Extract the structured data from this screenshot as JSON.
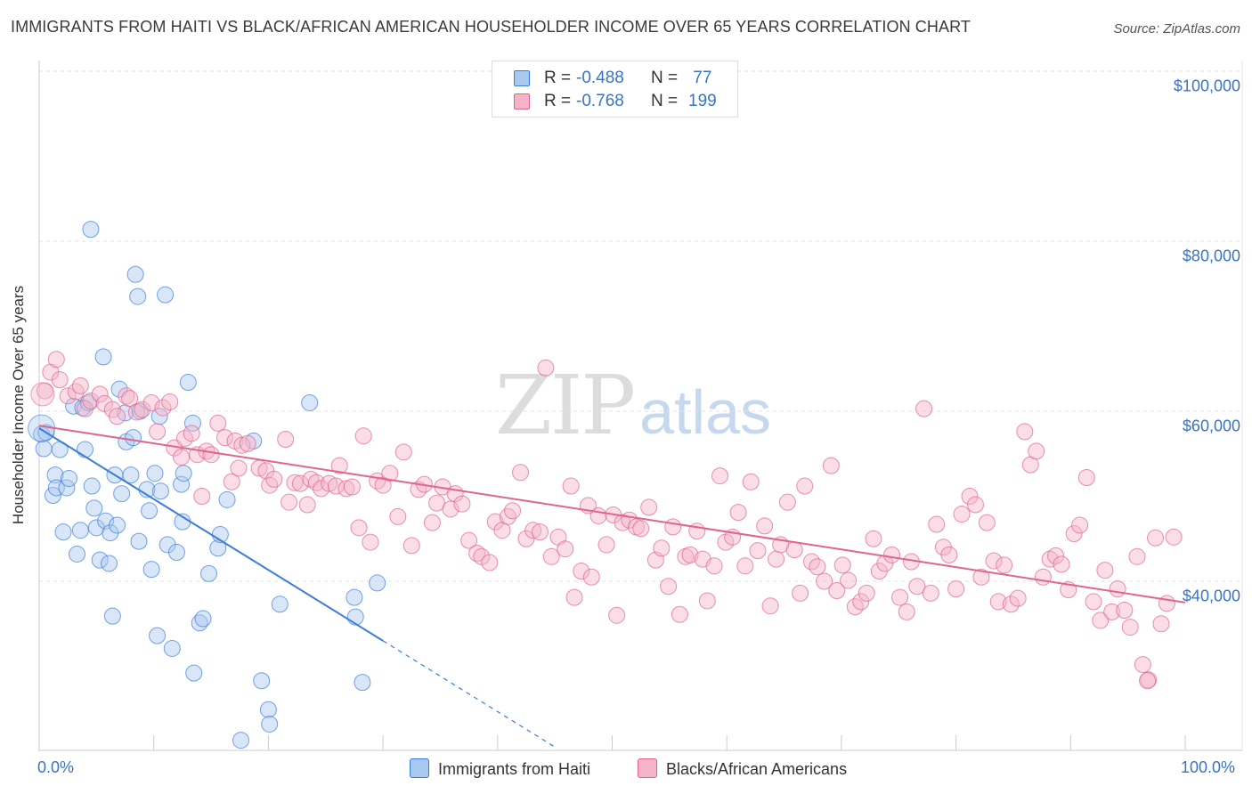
{
  "title": "IMMIGRANTS FROM HAITI VS BLACK/AFRICAN AMERICAN HOUSEHOLDER INCOME OVER 65 YEARS CORRELATION CHART",
  "source": "Source: ZipAtlas.com",
  "watermark": {
    "zip": "ZIP",
    "atlas": "atlas"
  },
  "legend": {
    "series1": {
      "r_label": "R = ",
      "r_value": "-0.488",
      "n_label": "N = ",
      "n_value": " 77"
    },
    "series2": {
      "r_label": "R = ",
      "r_value": "-0.768",
      "n_label": "N = ",
      "n_value": "199"
    }
  },
  "colors": {
    "blue": "#3b7dd8",
    "blue_fill": "#a9c8f0",
    "pink": "#e0648f",
    "pink_fill": "#f5b3c8",
    "tick_text": "#3a73c4",
    "grid": "#e2e2e2"
  },
  "chart_data": {
    "type": "scatter",
    "title": "IMMIGRANTS FROM HAITI VS BLACK/AFRICAN AMERICAN HOUSEHOLDER INCOME OVER 65 YEARS CORRELATION CHART",
    "xlabel": "",
    "ylabel": "Householder Income Over 65 years",
    "xlim": [
      0,
      100
    ],
    "ylim": [
      20000,
      102000
    ],
    "x_tick_labels": [
      "0.0%",
      "100.0%"
    ],
    "y_ticks": [
      {
        "value": 40000,
        "label": "$40,000"
      },
      {
        "value": 60000,
        "label": "$60,000"
      },
      {
        "value": 80000,
        "label": "$80,000"
      },
      {
        "value": 100000,
        "label": "$100,000"
      }
    ],
    "grid": true,
    "series": [
      {
        "name": "Immigrants from Haiti",
        "color": "#3b7dd8",
        "r": -0.488,
        "n": 77,
        "trend": {
          "x0": 0,
          "y0": 58000,
          "x1": 30,
          "y1": 33000,
          "dashed_to_x": 45,
          "dashed_to_y": 20500
        },
        "points": [
          [
            0.2,
            57.3
          ],
          [
            0.4,
            55.6
          ],
          [
            0.6,
            57.5
          ],
          [
            1.2,
            50.1
          ],
          [
            1.4,
            52.5
          ],
          [
            1.5,
            51.0
          ],
          [
            1.8,
            55.5
          ],
          [
            2.1,
            45.8
          ],
          [
            2.4,
            51.0
          ],
          [
            2.6,
            52.1
          ],
          [
            3.0,
            60.6
          ],
          [
            3.3,
            43.2
          ],
          [
            3.6,
            46.0
          ],
          [
            3.8,
            60.4
          ],
          [
            4.0,
            55.5
          ],
          [
            4.3,
            61.0
          ],
          [
            4.5,
            81.4
          ],
          [
            4.6,
            51.2
          ],
          [
            4.8,
            48.6
          ],
          [
            5.0,
            46.3
          ],
          [
            5.3,
            42.5
          ],
          [
            5.6,
            66.4
          ],
          [
            5.8,
            47.1
          ],
          [
            6.1,
            42.1
          ],
          [
            6.2,
            45.7
          ],
          [
            6.4,
            35.9
          ],
          [
            6.6,
            52.5
          ],
          [
            6.8,
            46.6
          ],
          [
            7.0,
            62.6
          ],
          [
            7.2,
            50.3
          ],
          [
            7.5,
            59.8
          ],
          [
            7.6,
            56.4
          ],
          [
            8.0,
            52.5
          ],
          [
            8.2,
            56.9
          ],
          [
            8.4,
            76.1
          ],
          [
            8.6,
            73.5
          ],
          [
            8.7,
            44.7
          ],
          [
            8.8,
            60.0
          ],
          [
            9.4,
            50.8
          ],
          [
            9.6,
            48.3
          ],
          [
            9.8,
            41.4
          ],
          [
            10.1,
            52.7
          ],
          [
            10.3,
            33.6
          ],
          [
            10.5,
            59.4
          ],
          [
            10.6,
            50.6
          ],
          [
            11.0,
            73.7
          ],
          [
            11.2,
            44.3
          ],
          [
            11.6,
            32.1
          ],
          [
            12.0,
            43.4
          ],
          [
            12.4,
            51.4
          ],
          [
            12.5,
            47.0
          ],
          [
            12.6,
            52.7
          ],
          [
            13.0,
            63.4
          ],
          [
            13.4,
            58.6
          ],
          [
            13.5,
            29.2
          ],
          [
            14.0,
            35.1
          ],
          [
            14.3,
            35.6
          ],
          [
            14.8,
            40.9
          ],
          [
            15.6,
            43.9
          ],
          [
            15.8,
            45.5
          ],
          [
            16.4,
            49.6
          ],
          [
            17.6,
            21.3
          ],
          [
            18.7,
            56.5
          ],
          [
            19.4,
            28.3
          ],
          [
            20.0,
            24.9
          ],
          [
            20.1,
            23.2
          ],
          [
            21.0,
            37.3
          ],
          [
            23.6,
            61.0
          ],
          [
            27.5,
            38.1
          ],
          [
            27.6,
            35.8
          ],
          [
            28.2,
            28.1
          ],
          [
            29.5,
            39.8
          ]
        ]
      },
      {
        "name": "Blacks/African Americans",
        "color": "#e0648f",
        "r": -0.768,
        "n": 199,
        "trend": {
          "x0": 0,
          "y0": 58300,
          "x1": 100,
          "y1": 37500
        },
        "points": [
          [
            0.5,
            62.4
          ],
          [
            1.0,
            64.6
          ],
          [
            1.5,
            66.1
          ],
          [
            1.8,
            63.7
          ],
          [
            2.5,
            61.8
          ],
          [
            3.2,
            62.3
          ],
          [
            3.6,
            63.0
          ],
          [
            4.0,
            60.3
          ],
          [
            4.5,
            61.2
          ],
          [
            5.3,
            62.0
          ],
          [
            5.7,
            60.9
          ],
          [
            6.4,
            60.2
          ],
          [
            6.8,
            59.4
          ],
          [
            7.6,
            61.8
          ],
          [
            7.9,
            61.5
          ],
          [
            8.5,
            59.9
          ],
          [
            9.0,
            60.2
          ],
          [
            9.8,
            61.0
          ],
          [
            10.3,
            57.6
          ],
          [
            10.8,
            60.4
          ],
          [
            11.4,
            61.1
          ],
          [
            11.8,
            55.7
          ],
          [
            12.4,
            54.6
          ],
          [
            12.7,
            56.8
          ],
          [
            13.3,
            57.4
          ],
          [
            13.8,
            54.9
          ],
          [
            14.2,
            50.0
          ],
          [
            14.6,
            55.3
          ],
          [
            15.0,
            54.9
          ],
          [
            15.6,
            58.6
          ],
          [
            16.2,
            56.9
          ],
          [
            16.8,
            51.7
          ],
          [
            17.1,
            56.5
          ],
          [
            17.4,
            53.3
          ],
          [
            17.7,
            56.0
          ],
          [
            18.2,
            56.2
          ],
          [
            19.2,
            53.3
          ],
          [
            19.8,
            53.0
          ],
          [
            20.1,
            51.3
          ],
          [
            20.5,
            52.0
          ],
          [
            21.5,
            56.7
          ],
          [
            21.8,
            49.3
          ],
          [
            22.3,
            51.6
          ],
          [
            22.8,
            51.5
          ],
          [
            23.4,
            49.0
          ],
          [
            23.7,
            52.0
          ],
          [
            24.2,
            51.6
          ],
          [
            24.6,
            50.9
          ],
          [
            25.3,
            51.5
          ],
          [
            25.9,
            51.2
          ],
          [
            26.2,
            53.6
          ],
          [
            26.8,
            50.9
          ],
          [
            27.3,
            51.1
          ],
          [
            27.9,
            46.3
          ],
          [
            28.3,
            57.1
          ],
          [
            28.9,
            44.6
          ],
          [
            29.5,
            51.8
          ],
          [
            30.0,
            51.3
          ],
          [
            30.6,
            52.7
          ],
          [
            31.3,
            47.6
          ],
          [
            31.8,
            55.2
          ],
          [
            32.5,
            44.2
          ],
          [
            33.1,
            50.8
          ],
          [
            33.6,
            51.4
          ],
          [
            34.3,
            46.9
          ],
          [
            34.7,
            49.2
          ],
          [
            35.2,
            51.1
          ],
          [
            35.9,
            48.5
          ],
          [
            36.3,
            50.3
          ],
          [
            36.9,
            49.1
          ],
          [
            37.5,
            44.8
          ],
          [
            38.2,
            43.3
          ],
          [
            38.6,
            42.9
          ],
          [
            39.3,
            42.2
          ],
          [
            39.8,
            47.0
          ],
          [
            40.4,
            46.0
          ],
          [
            40.9,
            47.6
          ],
          [
            41.3,
            48.3
          ],
          [
            42.0,
            52.8
          ],
          [
            42.5,
            45.0
          ],
          [
            43.1,
            46.0
          ],
          [
            43.7,
            45.8
          ],
          [
            44.2,
            65.1
          ],
          [
            44.7,
            42.9
          ],
          [
            45.3,
            45.2
          ],
          [
            45.9,
            43.8
          ],
          [
            46.4,
            51.2
          ],
          [
            46.7,
            38.1
          ],
          [
            47.3,
            41.2
          ],
          [
            47.9,
            48.9
          ],
          [
            48.2,
            40.5
          ],
          [
            48.8,
            47.7
          ],
          [
            49.5,
            44.3
          ],
          [
            50.1,
            47.8
          ],
          [
            50.4,
            36.0
          ],
          [
            50.9,
            46.9
          ],
          [
            51.5,
            47.2
          ],
          [
            52.1,
            46.4
          ],
          [
            52.5,
            46.2
          ],
          [
            53.2,
            48.7
          ],
          [
            53.8,
            42.5
          ],
          [
            54.3,
            43.9
          ],
          [
            54.9,
            39.4
          ],
          [
            55.3,
            46.4
          ],
          [
            55.9,
            36.1
          ],
          [
            56.4,
            42.9
          ],
          [
            56.8,
            43.1
          ],
          [
            57.4,
            45.9
          ],
          [
            57.9,
            42.6
          ],
          [
            58.3,
            37.7
          ],
          [
            58.9,
            41.8
          ],
          [
            59.4,
            52.4
          ],
          [
            59.9,
            44.6
          ],
          [
            60.5,
            45.2
          ],
          [
            61.0,
            48.1
          ],
          [
            61.6,
            41.8
          ],
          [
            62.1,
            51.7
          ],
          [
            62.7,
            43.6
          ],
          [
            63.3,
            46.5
          ],
          [
            63.8,
            37.1
          ],
          [
            64.3,
            42.6
          ],
          [
            64.7,
            44.3
          ],
          [
            65.3,
            49.3
          ],
          [
            65.9,
            43.7
          ],
          [
            66.4,
            38.6
          ],
          [
            66.8,
            51.2
          ],
          [
            67.4,
            42.3
          ],
          [
            67.9,
            41.7
          ],
          [
            68.5,
            40.0
          ],
          [
            69.1,
            53.6
          ],
          [
            69.6,
            38.9
          ],
          [
            70.1,
            41.9
          ],
          [
            70.6,
            40.1
          ],
          [
            71.2,
            37.0
          ],
          [
            71.7,
            37.6
          ],
          [
            72.2,
            38.6
          ],
          [
            72.8,
            45.0
          ],
          [
            73.3,
            41.2
          ],
          [
            73.8,
            42.1
          ],
          [
            74.4,
            43.1
          ],
          [
            75.1,
            38.1
          ],
          [
            75.7,
            36.4
          ],
          [
            76.1,
            42.3
          ],
          [
            76.6,
            39.4
          ],
          [
            77.2,
            60.3
          ],
          [
            77.8,
            38.6
          ],
          [
            78.3,
            46.7
          ],
          [
            78.9,
            44.0
          ],
          [
            79.4,
            43.1
          ],
          [
            80.0,
            39.1
          ],
          [
            80.5,
            47.9
          ],
          [
            81.2,
            50.0
          ],
          [
            81.7,
            49.0
          ],
          [
            82.2,
            40.5
          ],
          [
            82.7,
            46.9
          ],
          [
            83.3,
            42.4
          ],
          [
            83.7,
            37.6
          ],
          [
            84.2,
            41.9
          ],
          [
            84.8,
            37.3
          ],
          [
            85.4,
            38.0
          ],
          [
            86.0,
            57.6
          ],
          [
            86.5,
            53.7
          ],
          [
            87.0,
            55.3
          ],
          [
            87.6,
            40.5
          ],
          [
            88.2,
            42.6
          ],
          [
            88.7,
            43.0
          ],
          [
            89.2,
            42.0
          ],
          [
            89.8,
            39.0
          ],
          [
            90.3,
            45.6
          ],
          [
            90.8,
            46.6
          ],
          [
            91.4,
            52.2
          ],
          [
            92.0,
            37.6
          ],
          [
            92.6,
            35.4
          ],
          [
            93.0,
            41.3
          ],
          [
            93.6,
            36.4
          ],
          [
            94.1,
            39.1
          ],
          [
            94.7,
            36.6
          ],
          [
            95.2,
            34.6
          ],
          [
            95.8,
            42.9
          ],
          [
            96.3,
            30.2
          ],
          [
            96.8,
            28.4
          ],
          [
            97.4,
            45.1
          ],
          [
            97.9,
            35.0
          ],
          [
            98.4,
            37.4
          ],
          [
            99.0,
            45.2
          ],
          [
            96.7,
            28.3
          ]
        ]
      }
    ]
  },
  "bottom_legend": {
    "series1": "Immigrants from Haiti",
    "series2": "Blacks/African Americans"
  }
}
